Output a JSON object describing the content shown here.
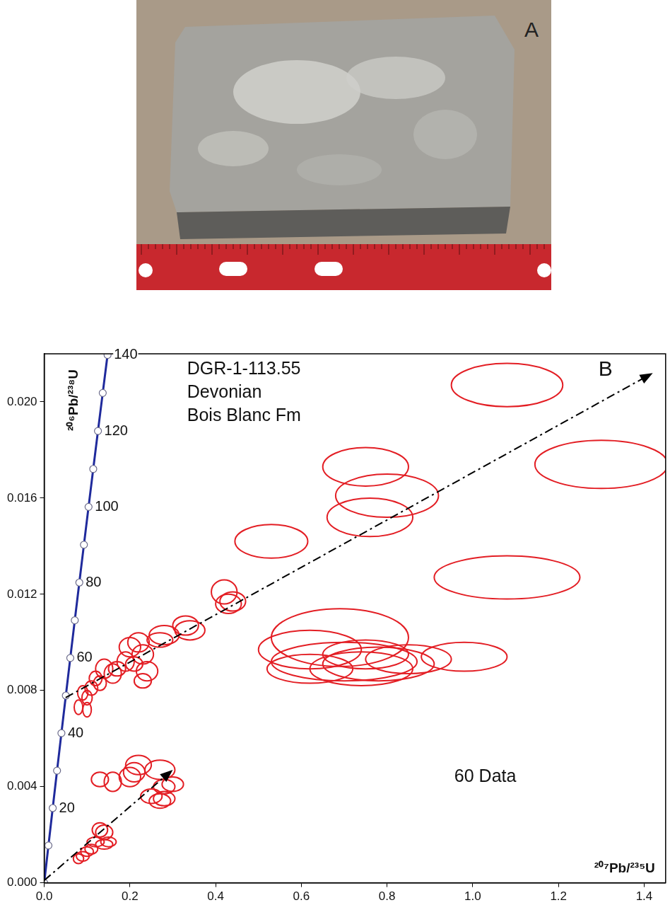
{
  "photo": {
    "panel_label": "A"
  },
  "chart_data": {
    "type": "scatter",
    "panel_label": "B",
    "title": "DGR-1-113.55",
    "subtitle": [
      "Devonian",
      "Bois Blanc Fm"
    ],
    "annotations": [
      "60 Data"
    ],
    "x_label": "²⁰⁷Pb/²³⁵U",
    "y_label": "²⁰⁶Pb/²³⁸U",
    "xlim": [
      0,
      1.45
    ],
    "ylim": [
      0,
      0.022
    ],
    "xticks": [
      {
        "value": 0,
        "label": "0.0"
      },
      {
        "value": 0.2,
        "label": "0.2"
      },
      {
        "value": 0.4,
        "label": "0.4"
      },
      {
        "value": 0.6,
        "label": "0.6"
      },
      {
        "value": 0.8,
        "label": "0.8"
      },
      {
        "value": 1.0,
        "label": "1.0"
      },
      {
        "value": 1.2,
        "label": "1.2"
      },
      {
        "value": 1.4,
        "label": "1.4"
      }
    ],
    "yticks": [
      {
        "value": 0,
        "label": "0.000"
      },
      {
        "value": 0.004,
        "label": "0.004"
      },
      {
        "value": 0.008,
        "label": "0.008"
      },
      {
        "value": 0.012,
        "label": "0.012"
      },
      {
        "value": 0.016,
        "label": "0.016"
      },
      {
        "value": 0.02,
        "label": "0.020"
      }
    ],
    "grid": false,
    "series": [
      {
        "type": "line",
        "color": "#1f2a9c",
        "marker": "circle",
        "line_style": "solid",
        "x": [
          0,
          0.009897,
          0.019892,
          0.029986,
          0.04018,
          0.050475,
          0.060872,
          0.071372,
          0.081975,
          0.092683,
          0.103498,
          0.11442,
          0.125451,
          0.136591,
          0.147841
        ],
        "values": [
          0,
          0.0015525,
          0.0031073,
          0.0046646,
          0.0062243,
          0.0077864,
          0.009351,
          0.0109179,
          0.0124873,
          0.0140592,
          0.0156335,
          0.0172102,
          0.0187893,
          0.0203709,
          0.021955
        ],
        "age_labels": [
          null,
          null,
          20,
          null,
          40,
          null,
          60,
          null,
          80,
          null,
          100,
          null,
          120,
          null,
          140
        ]
      },
      {
        "type": "ellipse",
        "color": "#e31e24",
        "x": [
          1.08,
          1.3,
          0.75,
          0.8,
          0.76,
          0.53,
          1.08,
          0.69,
          0.62,
          0.7,
          0.78,
          0.85,
          0.98,
          0.74,
          0.62,
          0.42,
          0.43,
          0.34,
          0.28,
          0.22,
          0.23,
          0.19,
          0.24,
          0.16,
          0.23,
          0.13,
          0.11,
          0.14,
          0.09,
          0.1,
          0.08,
          0.1,
          0.2,
          0.12,
          0.13,
          0.16,
          0.21,
          0.22,
          0.27,
          0.2,
          0.28,
          0.25,
          0.27,
          0.28,
          0.13,
          0.14,
          0.12,
          0.14,
          0.1,
          0.09,
          0.08,
          0.15,
          0.11,
          0.3,
          0.33,
          0.27,
          0.21,
          0.17,
          0.75,
          0.44
        ],
        "values": [
          0.0207,
          0.0174,
          0.0173,
          0.0161,
          0.0152,
          0.0142,
          0.0127,
          0.0102,
          0.0097,
          0.0092,
          0.0091,
          0.0093,
          0.0094,
          0.0089,
          0.0089,
          0.0121,
          0.0116,
          0.0105,
          0.0103,
          0.01,
          0.0095,
          0.0092,
          0.0088,
          0.0087,
          0.0084,
          0.0083,
          0.0081,
          0.0089,
          0.0079,
          0.0077,
          0.0073,
          0.0072,
          0.0098,
          0.0085,
          0.0043,
          0.0042,
          0.0046,
          0.0049,
          0.0047,
          0.0044,
          0.004,
          0.0036,
          0.0034,
          0.0035,
          0.0022,
          0.0021,
          0.0017,
          0.0016,
          0.0013,
          0.0011,
          0.001,
          0.0017,
          0.0014,
          0.0041,
          0.0107,
          0.0101,
          0.0091,
          0.0089,
          0.0095,
          0.0117
        ],
        "x_error": [
          0.13,
          0.155,
          0.1,
          0.12,
          0.1,
          0.085,
          0.17,
          0.16,
          0.12,
          0.17,
          0.13,
          0.1,
          0.1,
          0.12,
          0.1,
          0.03,
          0.03,
          0.035,
          0.035,
          0.025,
          0.025,
          0.02,
          0.025,
          0.02,
          0.02,
          0.015,
          0.015,
          0.02,
          0.012,
          0.012,
          0.01,
          0.01,
          0.025,
          0.015,
          0.02,
          0.02,
          0.025,
          0.03,
          0.035,
          0.025,
          0.025,
          0.025,
          0.025,
          0.025,
          0.018,
          0.02,
          0.02,
          0.02,
          0.015,
          0.015,
          0.012,
          0.018,
          0.015,
          0.025,
          0.03,
          0.03,
          0.02,
          0.02,
          0.1,
          0.03
        ],
        "y_error": [
          0.0009,
          0.001,
          0.0008,
          0.0009,
          0.0008,
          0.0007,
          0.0009,
          0.0012,
          0.0008,
          0.0008,
          0.0007,
          0.0006,
          0.0006,
          0.0007,
          0.0006,
          0.0005,
          0.0004,
          0.0004,
          0.0004,
          0.0004,
          0.0004,
          0.0004,
          0.0004,
          0.0004,
          0.0003,
          0.0003,
          0.0003,
          0.0004,
          0.0003,
          0.0003,
          0.0003,
          0.0003,
          0.0004,
          0.0003,
          0.0003,
          0.0004,
          0.0004,
          0.0004,
          0.0004,
          0.0004,
          0.0003,
          0.0003,
          0.0003,
          0.0003,
          0.0003,
          0.0003,
          0.0002,
          0.0002,
          0.0002,
          0.0002,
          0.0002,
          0.0002,
          0.0002,
          0.0003,
          0.0004,
          0.0003,
          0.0003,
          0.0003,
          0.0006,
          0.0004
        ]
      },
      {
        "type": "arrow",
        "color": "#000000",
        "line_style": "dashdot",
        "x": [
          0.05,
          1.42
        ],
        "values": [
          0.0077,
          0.0212
        ]
      },
      {
        "type": "arrow",
        "color": "#000000",
        "line_style": "dashdot",
        "x": [
          0.0,
          0.3
        ],
        "values": [
          0.0001,
          0.0047
        ]
      }
    ]
  }
}
